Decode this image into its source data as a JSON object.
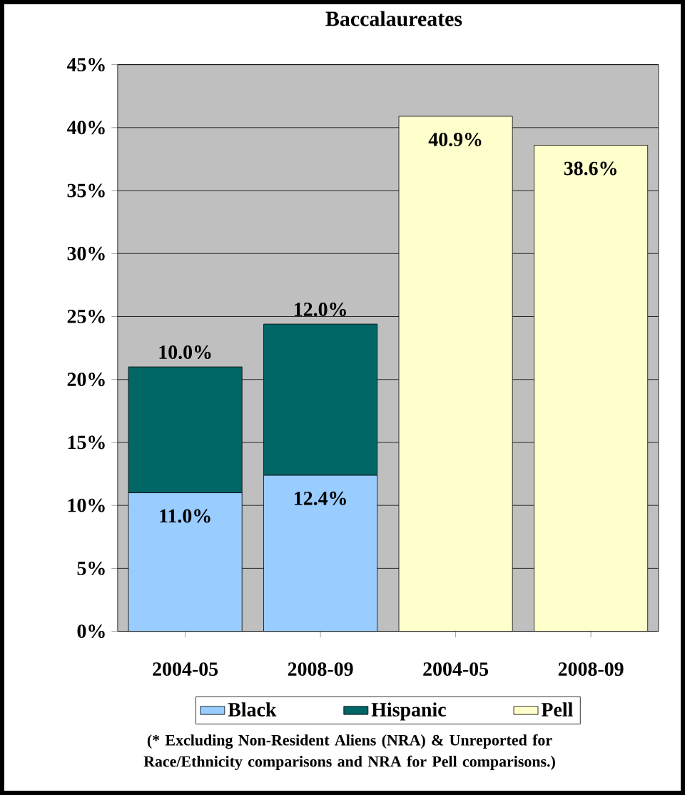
{
  "chart_data": {
    "type": "bar",
    "stacked": true,
    "title": "Baccalaureates",
    "categories": [
      "2004-05",
      "2008-09",
      "2004-05",
      "2008-09"
    ],
    "series": [
      {
        "name": "Black",
        "color": "#99ccff",
        "values": [
          11.0,
          12.4,
          null,
          null
        ],
        "value_labels": [
          "11.0%",
          "12.4%",
          null,
          null
        ]
      },
      {
        "name": "Hispanic",
        "color": "#006666",
        "values": [
          10.0,
          12.0,
          null,
          null
        ],
        "value_labels": [
          "10.0%",
          "12.0%",
          null,
          null
        ]
      },
      {
        "name": "Pell",
        "color": "#ffffcc",
        "values": [
          null,
          null,
          40.9,
          38.6
        ],
        "value_labels": [
          null,
          null,
          "40.9%",
          "38.6%"
        ]
      }
    ],
    "ylim": [
      0,
      45
    ],
    "yticks": [
      {
        "value": 0,
        "label": "0%"
      },
      {
        "value": 5,
        "label": "5%"
      },
      {
        "value": 10,
        "label": "10%"
      },
      {
        "value": 15,
        "label": "15%"
      },
      {
        "value": 20,
        "label": "20%"
      },
      {
        "value": 25,
        "label": "25%"
      },
      {
        "value": 30,
        "label": "30%"
      },
      {
        "value": 35,
        "label": "35%"
      },
      {
        "value": 40,
        "label": "40%"
      },
      {
        "value": 45,
        "label": "45%"
      }
    ],
    "grid": "y",
    "legend": "bottom",
    "annotations": [
      "(* Excluding Non-Resident Aliens (NRA) & Unreported for Race/Ethnicity comparisons and NRA for Pell comparisons.)"
    ]
  }
}
